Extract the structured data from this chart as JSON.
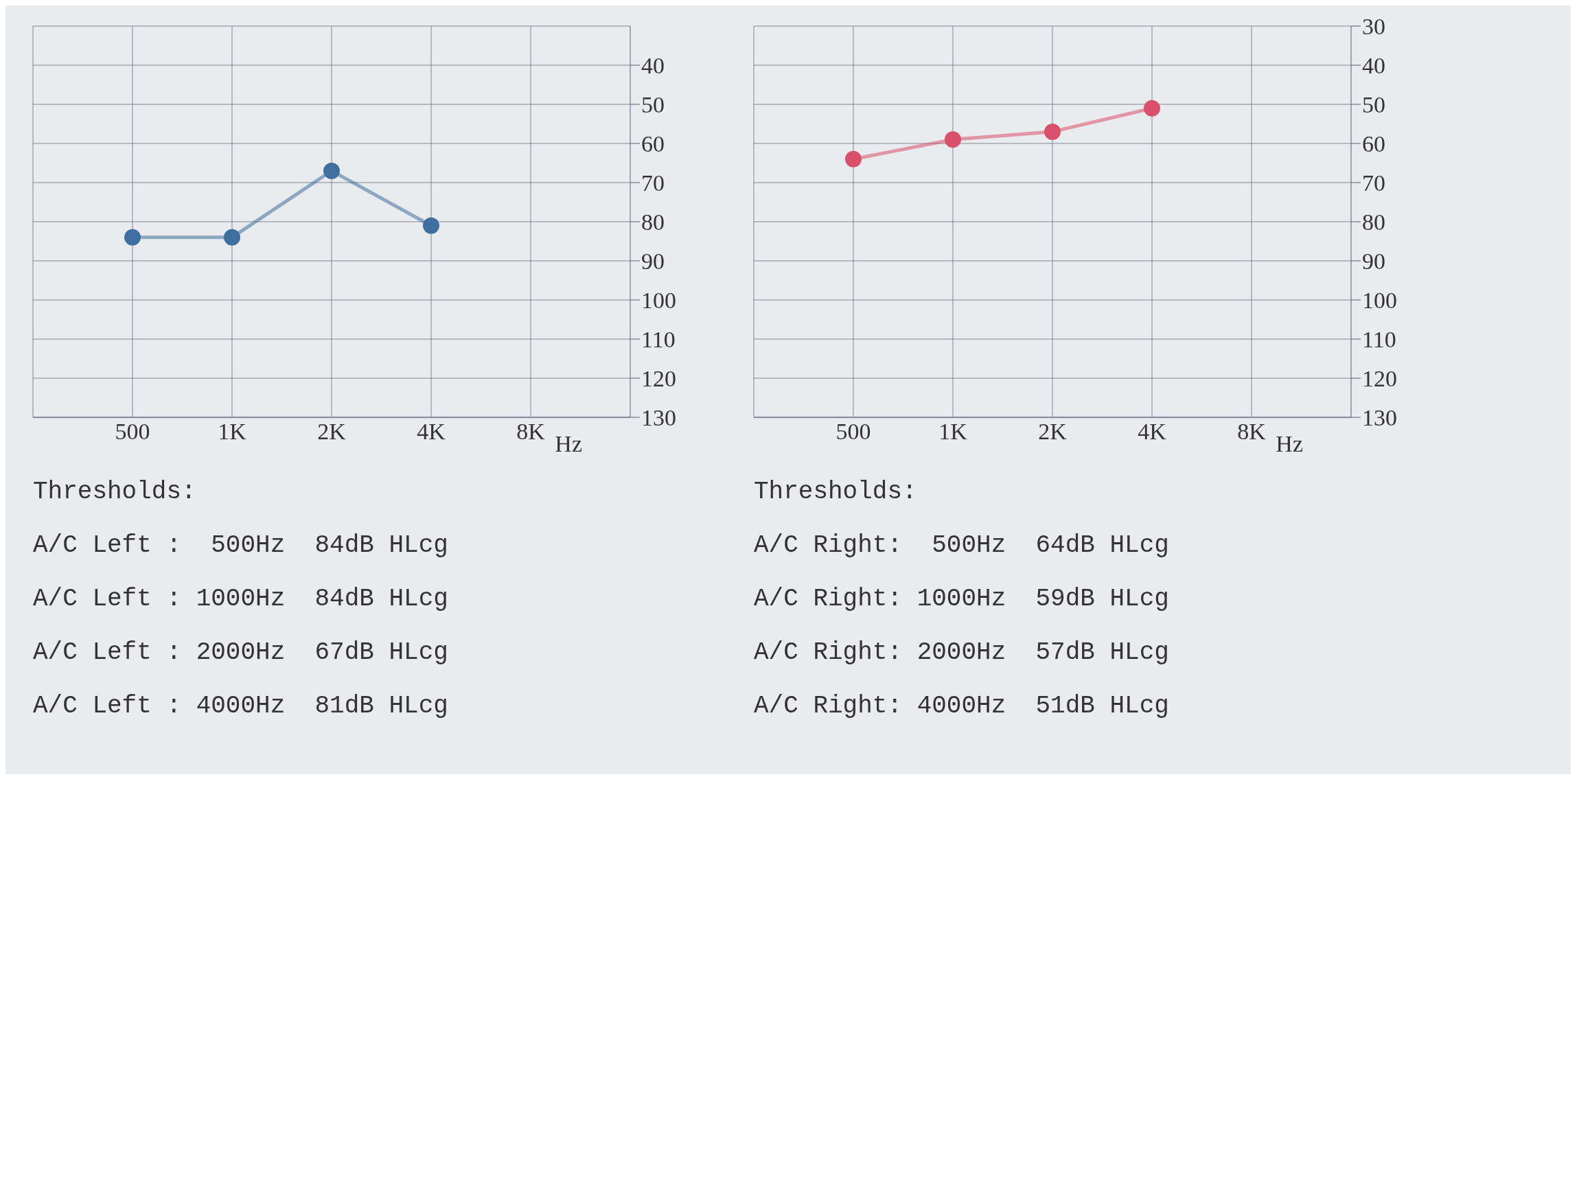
{
  "chart_data": [
    {
      "type": "line",
      "categories": [
        "500",
        "1K",
        "2K",
        "4K",
        "8K"
      ],
      "xlabel": "Hz",
      "ylim": [
        130,
        30
      ],
      "yticks": [
        40,
        50,
        60,
        70,
        80,
        90,
        100,
        110,
        120,
        130
      ],
      "grid": true,
      "marker": "circle",
      "line_style": "solid",
      "series": [
        {
          "color": "#3f6f9f",
          "values": [
            84,
            84,
            67,
            81,
            null
          ]
        }
      ],
      "annotations": [
        "Thresholds:",
        "A/C Left :  500Hz  84dB HLcg",
        "A/C Left : 1000Hz  84dB HLcg",
        "A/C Left : 2000Hz  67dB HLcg",
        "A/C Left : 4000Hz  81dB HLcg"
      ]
    },
    {
      "type": "line",
      "categories": [
        "500",
        "1K",
        "2K",
        "4K",
        "8K"
      ],
      "xlabel": "Hz",
      "ylim": [
        130,
        30
      ],
      "yticks": [
        30,
        40,
        50,
        60,
        70,
        80,
        90,
        100,
        110,
        120,
        130
      ],
      "grid": true,
      "marker": "circle",
      "line_style": "solid",
      "series": [
        {
          "color": "#d9506a",
          "values": [
            64,
            59,
            57,
            51,
            null
          ]
        }
      ],
      "annotations": [
        "Thresholds:",
        "A/C Right:  500Hz  64dB HLcg",
        "A/C Right: 1000Hz  59dB HLcg",
        "A/C Right: 2000Hz  57dB HLcg",
        "A/C Right: 4000Hz  51dB HLcg"
      ]
    }
  ]
}
